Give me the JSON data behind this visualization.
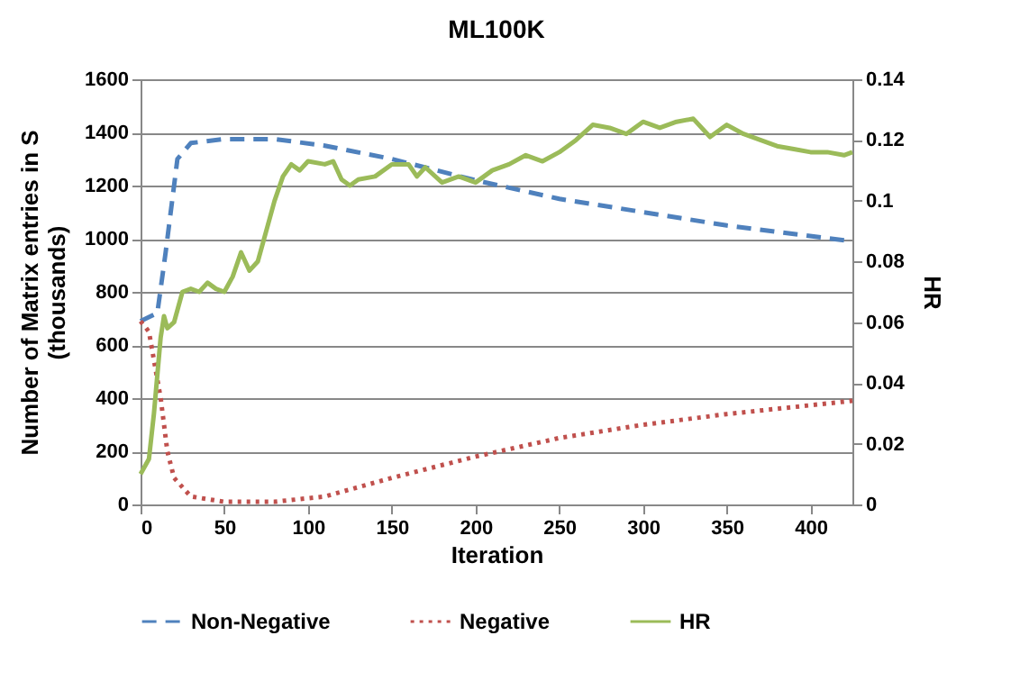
{
  "chart_data": {
    "type": "line",
    "title": "ML100K",
    "xlabel": "Iteration",
    "ylabel": "Number of Matrix entries in S (thousands)",
    "y2label": "HR",
    "xlim": [
      0,
      425
    ],
    "xticks": [
      0,
      50,
      100,
      150,
      200,
      250,
      300,
      350,
      400
    ],
    "ylim": [
      0,
      1600
    ],
    "yticks": [
      0,
      200,
      400,
      600,
      800,
      1000,
      1200,
      1400,
      1600
    ],
    "y2lim": [
      0,
      0.14
    ],
    "y2ticks": [
      0,
      0.02,
      0.04,
      0.06,
      0.08,
      0.1,
      0.12,
      0.14
    ],
    "grid": "y",
    "legend": "bottom",
    "series": [
      {
        "name": "Non-Negative",
        "color": "#4f81bd",
        "line_style": "dashed",
        "axis": "y",
        "x": [
          0,
          10,
          15,
          22,
          30,
          50,
          80,
          110,
          150,
          200,
          250,
          300,
          350,
          425
        ],
        "values": [
          690,
          720,
          950,
          1300,
          1360,
          1375,
          1375,
          1350,
          1300,
          1220,
          1150,
          1100,
          1050,
          990
        ]
      },
      {
        "name": "Negative",
        "color": "#c0504d",
        "line_style": "dotted",
        "axis": "y",
        "x": [
          0,
          5,
          12,
          16,
          20,
          30,
          50,
          80,
          110,
          150,
          200,
          250,
          300,
          350,
          425
        ],
        "values": [
          690,
          650,
          400,
          200,
          100,
          30,
          10,
          10,
          30,
          100,
          180,
          250,
          300,
          340,
          390
        ]
      },
      {
        "name": "HR",
        "color": "#9bbb59",
        "line_style": "solid",
        "axis": "y2",
        "x": [
          0,
          5,
          8,
          12,
          14,
          16,
          20,
          25,
          30,
          35,
          40,
          45,
          50,
          55,
          60,
          65,
          70,
          75,
          80,
          85,
          90,
          95,
          100,
          110,
          115,
          120,
          125,
          130,
          140,
          150,
          160,
          165,
          170,
          180,
          190,
          200,
          210,
          220,
          230,
          240,
          250,
          260,
          270,
          280,
          290,
          300,
          310,
          320,
          330,
          340,
          350,
          360,
          370,
          380,
          390,
          400,
          410,
          420,
          425
        ],
        "values": [
          0.01,
          0.015,
          0.03,
          0.055,
          0.062,
          0.058,
          0.06,
          0.07,
          0.071,
          0.07,
          0.073,
          0.071,
          0.07,
          0.075,
          0.083,
          0.077,
          0.08,
          0.09,
          0.1,
          0.108,
          0.112,
          0.11,
          0.113,
          0.112,
          0.113,
          0.107,
          0.105,
          0.107,
          0.108,
          0.112,
          0.112,
          0.108,
          0.111,
          0.106,
          0.108,
          0.106,
          0.11,
          0.112,
          0.115,
          0.113,
          0.116,
          0.12,
          0.125,
          0.124,
          0.122,
          0.126,
          0.124,
          0.126,
          0.127,
          0.121,
          0.125,
          0.122,
          0.12,
          0.118,
          0.117,
          0.116,
          0.116,
          0.115,
          0.116
        ]
      }
    ]
  }
}
